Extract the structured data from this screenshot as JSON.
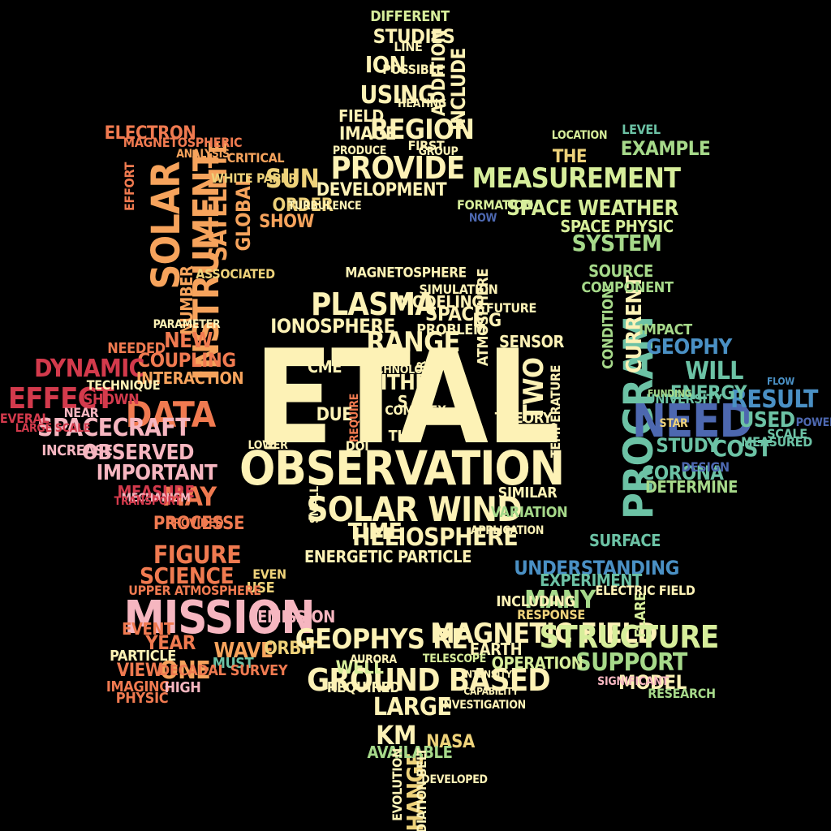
{
  "palette": {
    "background": "#000000",
    "cream": "#fdf2b6",
    "light_yellow": "#f6e89a",
    "yellow": "#eed27a",
    "orange": "#f6a35c",
    "coral": "#f07a50",
    "red_orange": "#e25845",
    "crimson": "#d33a4c",
    "pink": "#f6b6c0",
    "light_green": "#d7ee9b",
    "green": "#a6d98a",
    "teal": "#6cc2a5",
    "blue": "#4a90c4",
    "navy": "#4d68b0"
  },
  "words": [
    {
      "text": "ETAL",
      "color": "cream"
    },
    {
      "text": "OBSERVATION",
      "color": "cream"
    },
    {
      "text": "SOLAR WIND",
      "color": "cream"
    },
    {
      "text": "PLASMA",
      "color": "cream"
    },
    {
      "text": "IONOSPHERE",
      "color": "cream"
    },
    {
      "text": "MAGNETOSPHERE",
      "color": "cream"
    },
    {
      "text": "MEASUREMENT",
      "color": "light_green"
    },
    {
      "text": "SPACE WEATHER",
      "color": "light_green"
    },
    {
      "text": "SYSTEM",
      "color": "green"
    },
    {
      "text": "SOURCE",
      "color": "green"
    },
    {
      "text": "EXAMPLE",
      "color": "green"
    },
    {
      "text": "PROVIDE",
      "color": "cream"
    },
    {
      "text": "REGION",
      "color": "cream"
    },
    {
      "text": "USING",
      "color": "cream"
    },
    {
      "text": "STUDIES",
      "color": "cream"
    },
    {
      "text": "ION",
      "color": "cream"
    },
    {
      "text": "IMAGE",
      "color": "cream"
    },
    {
      "text": "FIELD",
      "color": "cream"
    },
    {
      "text": "DEVELOPMENT",
      "color": "cream"
    },
    {
      "text": "SUN",
      "color": "yellow"
    },
    {
      "text": "ORDER",
      "color": "yellow"
    },
    {
      "text": "SOLAR",
      "color": "orange"
    },
    {
      "text": "INSTRUMENT",
      "color": "orange"
    },
    {
      "text": "SATELLITE",
      "color": "orange"
    },
    {
      "text": "GLOBAL",
      "color": "orange"
    },
    {
      "text": "ELECTRON",
      "color": "coral"
    },
    {
      "text": "DATA",
      "color": "coral"
    },
    {
      "text": "NEW",
      "color": "coral"
    },
    {
      "text": "COUPLING",
      "color": "coral"
    },
    {
      "text": "DYNAMIC",
      "color": "crimson"
    },
    {
      "text": "EFFECT",
      "color": "crimson"
    },
    {
      "text": "SPACECRAFT",
      "color": "pink"
    },
    {
      "text": "OBSERVED",
      "color": "pink"
    },
    {
      "text": "IMPORTANT",
      "color": "pink"
    },
    {
      "text": "MAY",
      "color": "coral"
    },
    {
      "text": "PROCESSE",
      "color": "coral"
    },
    {
      "text": "FIGURE",
      "color": "coral"
    },
    {
      "text": "SCIENCE",
      "color": "coral"
    },
    {
      "text": "MISSION",
      "color": "pink"
    },
    {
      "text": "ONE",
      "color": "orange"
    },
    {
      "text": "WAVE",
      "color": "orange"
    },
    {
      "text": "ORBIT",
      "color": "yellow"
    },
    {
      "text": "GEOPHYS RE",
      "color": "cream"
    },
    {
      "text": "MAGNETIC FIELD",
      "color": "cream"
    },
    {
      "text": "STRUCTURE",
      "color": "light_green"
    },
    {
      "text": "SUPPORT",
      "color": "green"
    },
    {
      "text": "MODEL",
      "color": "cream"
    },
    {
      "text": "GROUND BASED",
      "color": "cream"
    },
    {
      "text": "LARGE",
      "color": "cream"
    },
    {
      "text": "KM",
      "color": "cream"
    },
    {
      "text": "NASA",
      "color": "yellow"
    },
    {
      "text": "CHANGE",
      "color": "yellow"
    },
    {
      "text": "WELL",
      "color": "light_green"
    },
    {
      "text": "MANY",
      "color": "green"
    },
    {
      "text": "UNDERSTANDING",
      "color": "blue"
    },
    {
      "text": "PROGRAM",
      "color": "teal"
    },
    {
      "text": "WILL",
      "color": "teal"
    },
    {
      "text": "NEED",
      "color": "navy"
    },
    {
      "text": "RESULT",
      "color": "blue"
    },
    {
      "text": "USED",
      "color": "teal"
    },
    {
      "text": "COST",
      "color": "teal"
    },
    {
      "text": "STUDY",
      "color": "teal"
    },
    {
      "text": "CORONA",
      "color": "teal"
    },
    {
      "text": "ENERGY",
      "color": "teal"
    },
    {
      "text": "GEOPHY",
      "color": "blue"
    },
    {
      "text": "CURRENT",
      "color": "cream"
    },
    {
      "text": "TIME",
      "color": "cream"
    },
    {
      "text": "HELIOSPHERE",
      "color": "cream"
    },
    {
      "text": "ENERGETIC PARTICLE",
      "color": "cream"
    },
    {
      "text": "EARTH",
      "color": "cream"
    },
    {
      "text": "E G",
      "color": "cream"
    },
    {
      "text": "SPACE",
      "color": "cream"
    },
    {
      "text": "TWO",
      "color": "cream"
    },
    {
      "text": "WITHIN",
      "color": "cream"
    },
    {
      "text": "CME",
      "color": "cream"
    },
    {
      "text": "DUE",
      "color": "cream"
    },
    {
      "text": "THU",
      "color": "cream"
    },
    {
      "text": "S",
      "color": "cream"
    },
    {
      "text": "RANGE",
      "color": "cream"
    },
    {
      "text": "MODELING",
      "color": "cream"
    },
    {
      "text": "IONOSPHERIC",
      "color": "cream"
    },
    {
      "text": "TEMPERATURE",
      "color": "cream"
    },
    {
      "text": "ATMOSPHERE",
      "color": "cream"
    },
    {
      "text": "REQUIRE",
      "color": "coral"
    },
    {
      "text": "YEAR",
      "color": "coral"
    },
    {
      "text": "VIEW",
      "color": "coral"
    },
    {
      "text": "EVENT",
      "color": "coral"
    },
    {
      "text": "IMAGING",
      "color": "coral"
    },
    {
      "text": "PHYSIC",
      "color": "coral"
    },
    {
      "text": "HIGH",
      "color": "pink"
    },
    {
      "text": "MEASURE",
      "color": "crimson"
    },
    {
      "text": "NEEDED",
      "color": "coral"
    },
    {
      "text": "INTERACTION",
      "color": "orange"
    },
    {
      "text": "NUMBER",
      "color": "orange"
    },
    {
      "text": "ASSOCIATED",
      "color": "yellow"
    },
    {
      "text": "REQUIRED",
      "color": "cream"
    },
    {
      "text": "AVAILABLE",
      "color": "green"
    },
    {
      "text": "RESEARCH",
      "color": "green"
    },
    {
      "text": "EXPERIMENT",
      "color": "teal"
    },
    {
      "text": "FLARE",
      "color": "light_green"
    },
    {
      "text": "OPERATION",
      "color": "light_green"
    },
    {
      "text": "INCLUDING",
      "color": "cream"
    },
    {
      "text": "INCLUDE",
      "color": "cream"
    },
    {
      "text": "ADDITION",
      "color": "cream"
    },
    {
      "text": "DIFFERENT",
      "color": "light_green"
    },
    {
      "text": "THE",
      "color": "yellow"
    },
    {
      "text": "SHOW",
      "color": "orange"
    },
    {
      "text": "CRITICAL",
      "color": "orange"
    },
    {
      "text": "WHITE PAPER",
      "color": "yellow"
    },
    {
      "text": "MUST",
      "color": "teal"
    },
    {
      "text": "DETERMINE",
      "color": "green"
    },
    {
      "text": "SPACE PHYSIC",
      "color": "light_green"
    },
    {
      "text": "COMPONENT",
      "color": "green"
    },
    {
      "text": "LEVEL",
      "color": "teal"
    },
    {
      "text": "DESIGN",
      "color": "navy"
    },
    {
      "text": "SCALE",
      "color": "teal"
    },
    {
      "text": "STAR",
      "color": "yellow"
    },
    {
      "text": "EMISSION",
      "color": "pink"
    },
    {
      "text": "INCREASE",
      "color": "pink"
    },
    {
      "text": "NEAR",
      "color": "pink"
    },
    {
      "text": "SHOWN",
      "color": "crimson"
    },
    {
      "text": "SEVERAL",
      "color": "crimson"
    },
    {
      "text": "TECHNIQUE",
      "color": "cream"
    },
    {
      "text": "LINE",
      "color": "cream"
    },
    {
      "text": "POSSIBLE",
      "color": "cream"
    },
    {
      "text": "FIRST",
      "color": "cream"
    },
    {
      "text": "SIMILAR",
      "color": "cream"
    },
    {
      "text": "SENSOR",
      "color": "cream"
    },
    {
      "text": "FUTURE",
      "color": "cream"
    },
    {
      "text": "THEORY",
      "color": "cream"
    },
    {
      "text": "PROBLEM",
      "color": "cream"
    },
    {
      "text": "SIMULATION",
      "color": "cream"
    },
    {
      "text": "APPLICATION",
      "color": "cream"
    },
    {
      "text": "SMALL",
      "color": "cream"
    },
    {
      "text": "COMPLEX",
      "color": "cream"
    },
    {
      "text": "DOI",
      "color": "cream"
    },
    {
      "text": "VARIATION",
      "color": "green"
    },
    {
      "text": "IMPACT",
      "color": "green"
    },
    {
      "text": "SURFACE",
      "color": "teal"
    },
    {
      "text": "CONDITION",
      "color": "green"
    },
    {
      "text": "ELECTRIC FIELD",
      "color": "cream"
    },
    {
      "text": "RESPONSE",
      "color": "yellow"
    },
    {
      "text": "USE",
      "color": "yellow"
    },
    {
      "text": "EVEN",
      "color": "yellow"
    },
    {
      "text": "DECADAL SURVEY",
      "color": "coral"
    },
    {
      "text": "UPPER ATMOSPHERE",
      "color": "coral"
    },
    {
      "text": "PROVIDED",
      "color": "coral"
    },
    {
      "text": "PARTICLE",
      "color": "cream"
    },
    {
      "text": "EVOLUTION",
      "color": "cream"
    },
    {
      "text": "RADIATION BELT",
      "color": "cream"
    },
    {
      "text": "TELESCOPE",
      "color": "light_green"
    },
    {
      "text": "LOCATION",
      "color": "light_green"
    },
    {
      "text": "FORMATION",
      "color": "light_green"
    },
    {
      "text": "NOW",
      "color": "navy"
    },
    {
      "text": "POWER",
      "color": "navy"
    },
    {
      "text": "FLOW",
      "color": "blue"
    },
    {
      "text": "MEASURED",
      "color": "teal"
    },
    {
      "text": "UNIVERSITY",
      "color": "teal"
    },
    {
      "text": "FUNDING",
      "color": "green"
    },
    {
      "text": "SIGNIFICANT",
      "color": "pink"
    },
    {
      "text": "MECHANISM",
      "color": "pink"
    },
    {
      "text": "TRANSPORT",
      "color": "crimson"
    },
    {
      "text": "LARGE SCALE",
      "color": "crimson"
    },
    {
      "text": "EFFORT",
      "color": "coral"
    },
    {
      "text": "MAGNETOSPHERIC",
      "color": "coral"
    },
    {
      "text": "ANALYSIS",
      "color": "orange"
    },
    {
      "text": "PARAMETER",
      "color": "cream"
    },
    {
      "text": "PRODUCE",
      "color": "cream"
    },
    {
      "text": "TURBULENCE",
      "color": "cream"
    },
    {
      "text": "HEATING",
      "color": "cream"
    },
    {
      "text": "TECHNOLOGY",
      "color": "cream"
    },
    {
      "text": "HOUR",
      "color": "cream"
    },
    {
      "text": "LOWER",
      "color": "cream"
    },
    {
      "text": "DEVELOPED",
      "color": "cream"
    },
    {
      "text": "INVESTIGATION",
      "color": "cream"
    },
    {
      "text": "AURORA",
      "color": "cream"
    },
    {
      "text": "INTENSITY",
      "color": "cream"
    },
    {
      "text": "CAPABILITY",
      "color": "cream"
    },
    {
      "text": "GROUP",
      "color": "cream"
    }
  ]
}
